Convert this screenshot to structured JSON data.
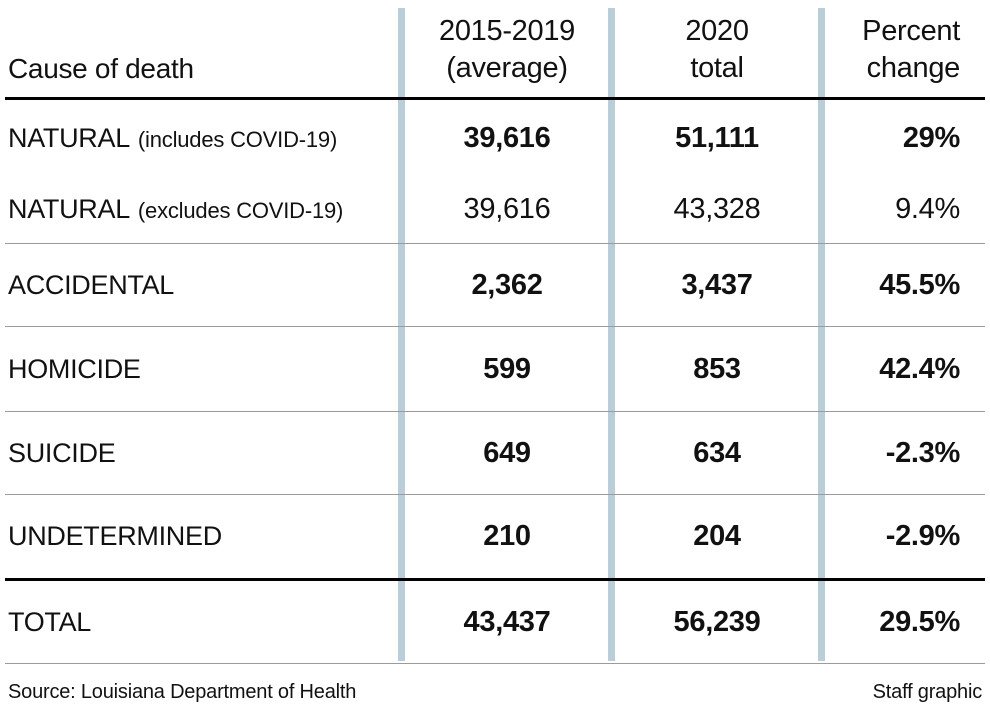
{
  "chart_data": {
    "type": "table",
    "columns": [
      "Cause of death",
      "2015-2019 (average)",
      "2020 total",
      "Percent change"
    ],
    "rows": [
      [
        "NATURAL (includes COVID-19)",
        "39,616",
        "51,111",
        "29%"
      ],
      [
        "NATURAL (excludes COVID-19)",
        "39,616",
        "43,328",
        "9.4%"
      ],
      [
        "ACCIDENTAL",
        "2,362",
        "3,437",
        "45.5%"
      ],
      [
        "HOMICIDE",
        "599",
        "853",
        "42.4%"
      ],
      [
        "SUICIDE",
        "649",
        "634",
        "-2.3%"
      ],
      [
        "UNDETERMINED",
        "210",
        "204",
        "-2.9%"
      ],
      [
        "TOTAL",
        "43,437",
        "56,239",
        "29.5%"
      ]
    ],
    "source": "Source: Louisiana Department of Health",
    "credit": "Staff graphic"
  },
  "header": {
    "cause": "Cause of death",
    "avg_line1": "2015-2019",
    "avg_line2": "(average)",
    "total_line1": "2020",
    "total_line2": "total",
    "pct_line1": "Percent",
    "pct_line2": "change"
  },
  "rows": [
    {
      "label": "NATURAL",
      "note": "(includes COVID-19)",
      "avg": "39,616",
      "total": "51,111",
      "pct": "29%"
    },
    {
      "label": "NATURAL",
      "note": "(excludes COVID-19)",
      "avg": "39,616",
      "total": "43,328",
      "pct": "9.4%"
    },
    {
      "label": "ACCIDENTAL",
      "note": "",
      "avg": "2,362",
      "total": "3,437",
      "pct": "45.5%"
    },
    {
      "label": "HOMICIDE",
      "note": "",
      "avg": "599",
      "total": "853",
      "pct": "42.4%"
    },
    {
      "label": "SUICIDE",
      "note": "",
      "avg": "649",
      "total": "634",
      "pct": "-2.3%"
    },
    {
      "label": "UNDETERMINED",
      "note": "",
      "avg": "210",
      "total": "204",
      "pct": "-2.9%"
    },
    {
      "label": "TOTAL",
      "note": "",
      "avg": "43,437",
      "total": "56,239",
      "pct": "29.5%"
    }
  ],
  "footer": {
    "source": "Source: Louisiana Department of Health",
    "credit": "Staff graphic"
  },
  "colors": {
    "column_divider": "#b9ced8",
    "heavy_rule": "#000000",
    "light_rule": "#9b9b9b",
    "text": "#111111"
  }
}
